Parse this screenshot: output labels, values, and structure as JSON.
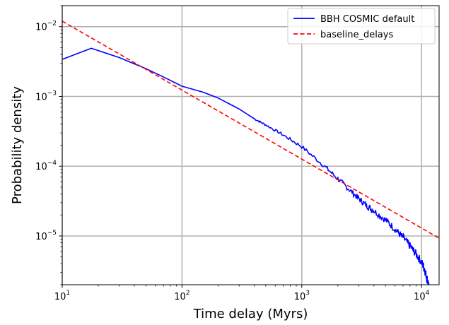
{
  "chart_data": {
    "type": "line",
    "title": "",
    "xlabel": "Time delay (Myrs)",
    "ylabel": "Probability density",
    "xscale": "log",
    "yscale": "log",
    "xlim": [
      10,
      14000
    ],
    "ylim": [
      2e-06,
      0.02
    ],
    "grid": true,
    "legend_position": "top-right",
    "x_ticks": [
      {
        "base": "10",
        "exp": "1",
        "value": 10
      },
      {
        "base": "10",
        "exp": "2",
        "value": 100
      },
      {
        "base": "10",
        "exp": "3",
        "value": 1000
      },
      {
        "base": "10",
        "exp": "4",
        "value": 10000
      }
    ],
    "y_ticks": [
      {
        "base": "10",
        "exp": "−5",
        "value": 1e-05
      },
      {
        "base": "10",
        "exp": "−4",
        "value": 0.0001
      },
      {
        "base": "10",
        "exp": "−3",
        "value": 0.001
      },
      {
        "base": "10",
        "exp": "−2",
        "value": 0.01
      }
    ],
    "series": [
      {
        "name": "BBH COSMIC default",
        "color": "#0000ff",
        "style": "solid",
        "x": [
          10,
          17.5,
          30,
          50,
          70,
          100,
          150,
          200,
          300,
          400,
          500,
          700,
          1000,
          1500,
          2000,
          2500,
          3000,
          3500,
          4000,
          5000,
          6000,
          7000,
          8000,
          9000,
          10000,
          10500,
          11000,
          11500
        ],
        "y": [
          0.0034,
          0.0049,
          0.0036,
          0.0025,
          0.0019,
          0.0014,
          0.00115,
          0.00095,
          0.00066,
          0.00048,
          0.00039,
          0.00028,
          0.00019,
          0.000105,
          6.6e-05,
          4.6e-05,
          3.4e-05,
          2.7e-05,
          2.3e-05,
          1.7e-05,
          1.25e-05,
          9.5e-06,
          7.2e-06,
          5.5e-06,
          4.2e-06,
          3.5e-06,
          2.6e-06,
          2e-06
        ]
      },
      {
        "name": "baseline_delays",
        "color": "#ff0000",
        "style": "dashed",
        "x": [
          10,
          14000
        ],
        "y": [
          0.012,
          9.3e-06
        ]
      }
    ]
  }
}
